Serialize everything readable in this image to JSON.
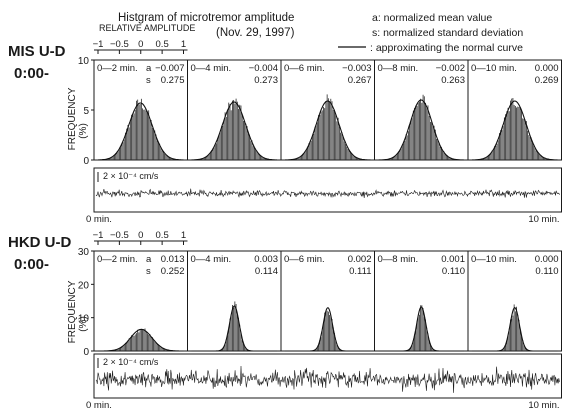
{
  "title": "Histgram of microtremor amplitude",
  "date": "(Nov. 29, 1997)",
  "legend": {
    "a": "a: normalized mean value",
    "s": "s: normalized standard deviation",
    "curve": ": approximating the normal curve"
  },
  "xaxis_label": "RELATIVE AMPLITUDE",
  "xticks": [
    "−1",
    "−0.5",
    "0",
    "0.5",
    "1"
  ],
  "ylabel": "FREQUENCY",
  "yunit": "(%)",
  "panels": [
    {
      "station": "MIS U-D",
      "time": "0:00-",
      "yticks": [
        "0",
        "5",
        "10"
      ],
      "ymax": 10,
      "scale_label": "2 × 10⁻⁴ cm/s",
      "trace_start": "0 min.",
      "trace_end": "10 min.",
      "trace_amplitude": 0.35,
      "subplots": [
        {
          "label": "0—2 min.",
          "a_prefix": "a",
          "s_prefix": "s",
          "a": "−0.007",
          "s": "0.275",
          "mean": -0.007,
          "sd": 0.275,
          "peak": 5.7
        },
        {
          "label": "0—4 min.",
          "a_prefix": "",
          "s_prefix": "",
          "a": "−0.004",
          "s": "0.273",
          "mean": -0.004,
          "sd": 0.273,
          "peak": 5.8
        },
        {
          "label": "0—6 min.",
          "a_prefix": "",
          "s_prefix": "",
          "a": "−0.003",
          "s": "0.267",
          "mean": -0.003,
          "sd": 0.267,
          "peak": 5.9
        },
        {
          "label": "0—8 min.",
          "a_prefix": "",
          "s_prefix": "",
          "a": "−0.002",
          "s": "0.263",
          "mean": -0.002,
          "sd": 0.263,
          "peak": 6.0
        },
        {
          "label": "0—10 min.",
          "a_prefix": "",
          "s_prefix": "",
          "a": "0.000",
          "s": "0.269",
          "mean": 0.0,
          "sd": 0.269,
          "peak": 5.9
        }
      ]
    },
    {
      "station": "HKD U-D",
      "time": "0:00-",
      "yticks": [
        "0",
        "10",
        "20",
        "30"
      ],
      "ymax": 30,
      "scale_label": "2 × 10⁻⁴ cm/s",
      "trace_start": "0 min.",
      "trace_end": "10 min.",
      "trace_amplitude": 0.95,
      "subplots": [
        {
          "label": "0—2 min.",
          "a_prefix": "a",
          "s_prefix": "s",
          "a": "0.013",
          "s": "0.252",
          "mean": 0.013,
          "sd": 0.252,
          "peak": 6.5
        },
        {
          "label": "0—4 min.",
          "a_prefix": "",
          "s_prefix": "",
          "a": "0.003",
          "s": "0.114",
          "mean": 0.003,
          "sd": 0.114,
          "peak": 13.5
        },
        {
          "label": "0—6 min.",
          "a_prefix": "",
          "s_prefix": "",
          "a": "0.002",
          "s": "0.111",
          "mean": 0.002,
          "sd": 0.111,
          "peak": 13.0
        },
        {
          "label": "0—8 min.",
          "a_prefix": "",
          "s_prefix": "",
          "a": "0.001",
          "s": "0.110",
          "mean": 0.001,
          "sd": 0.11,
          "peak": 13.2
        },
        {
          "label": "0—10 min.",
          "a_prefix": "",
          "s_prefix": "",
          "a": "0.000",
          "s": "0.110",
          "mean": 0.0,
          "sd": 0.11,
          "peak": 13.0
        }
      ]
    }
  ]
}
